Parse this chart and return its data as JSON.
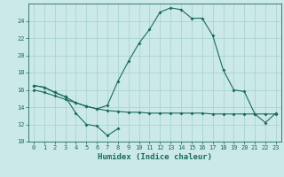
{
  "xlabel": "Humidex (Indice chaleur)",
  "line1_x": [
    0,
    1,
    2,
    3,
    4,
    5,
    6,
    7,
    8
  ],
  "line1_y": [
    16.5,
    16.3,
    15.7,
    15.2,
    13.3,
    12.0,
    11.8,
    10.7,
    11.5
  ],
  "line2_x": [
    0,
    1,
    2,
    3,
    4,
    5,
    6,
    7,
    8,
    9,
    10,
    11,
    12,
    13,
    14,
    15,
    16,
    17,
    18,
    19,
    20,
    21,
    22,
    23
  ],
  "line2_y": [
    16.5,
    16.3,
    15.7,
    15.2,
    14.5,
    14.1,
    13.8,
    14.2,
    17.0,
    19.3,
    21.4,
    23.0,
    25.0,
    25.5,
    25.3,
    24.3,
    24.3,
    22.3,
    18.3,
    16.0,
    15.8,
    13.2,
    12.2,
    13.3
  ],
  "line3_x": [
    0,
    1,
    2,
    3,
    4,
    5,
    6,
    7,
    8,
    9,
    10,
    11,
    12,
    13,
    14,
    15,
    16,
    17,
    18,
    19,
    20,
    21,
    22,
    23
  ],
  "line3_y": [
    16.0,
    15.7,
    15.3,
    14.9,
    14.5,
    14.1,
    13.8,
    13.6,
    13.5,
    13.4,
    13.4,
    13.3,
    13.3,
    13.3,
    13.3,
    13.3,
    13.3,
    13.2,
    13.2,
    13.2,
    13.2,
    13.2,
    13.2,
    13.2
  ],
  "bg_color": "#cce9e9",
  "line_color": "#1a6b5a",
  "grid_color": "#aad4d4",
  "ylim": [
    10,
    26
  ],
  "xlim": [
    -0.5,
    23.5
  ],
  "yticks": [
    10,
    12,
    14,
    16,
    18,
    20,
    22,
    24
  ],
  "xticks": [
    0,
    1,
    2,
    3,
    4,
    5,
    6,
    7,
    8,
    9,
    10,
    11,
    12,
    13,
    14,
    15,
    16,
    17,
    18,
    19,
    20,
    21,
    22,
    23
  ]
}
